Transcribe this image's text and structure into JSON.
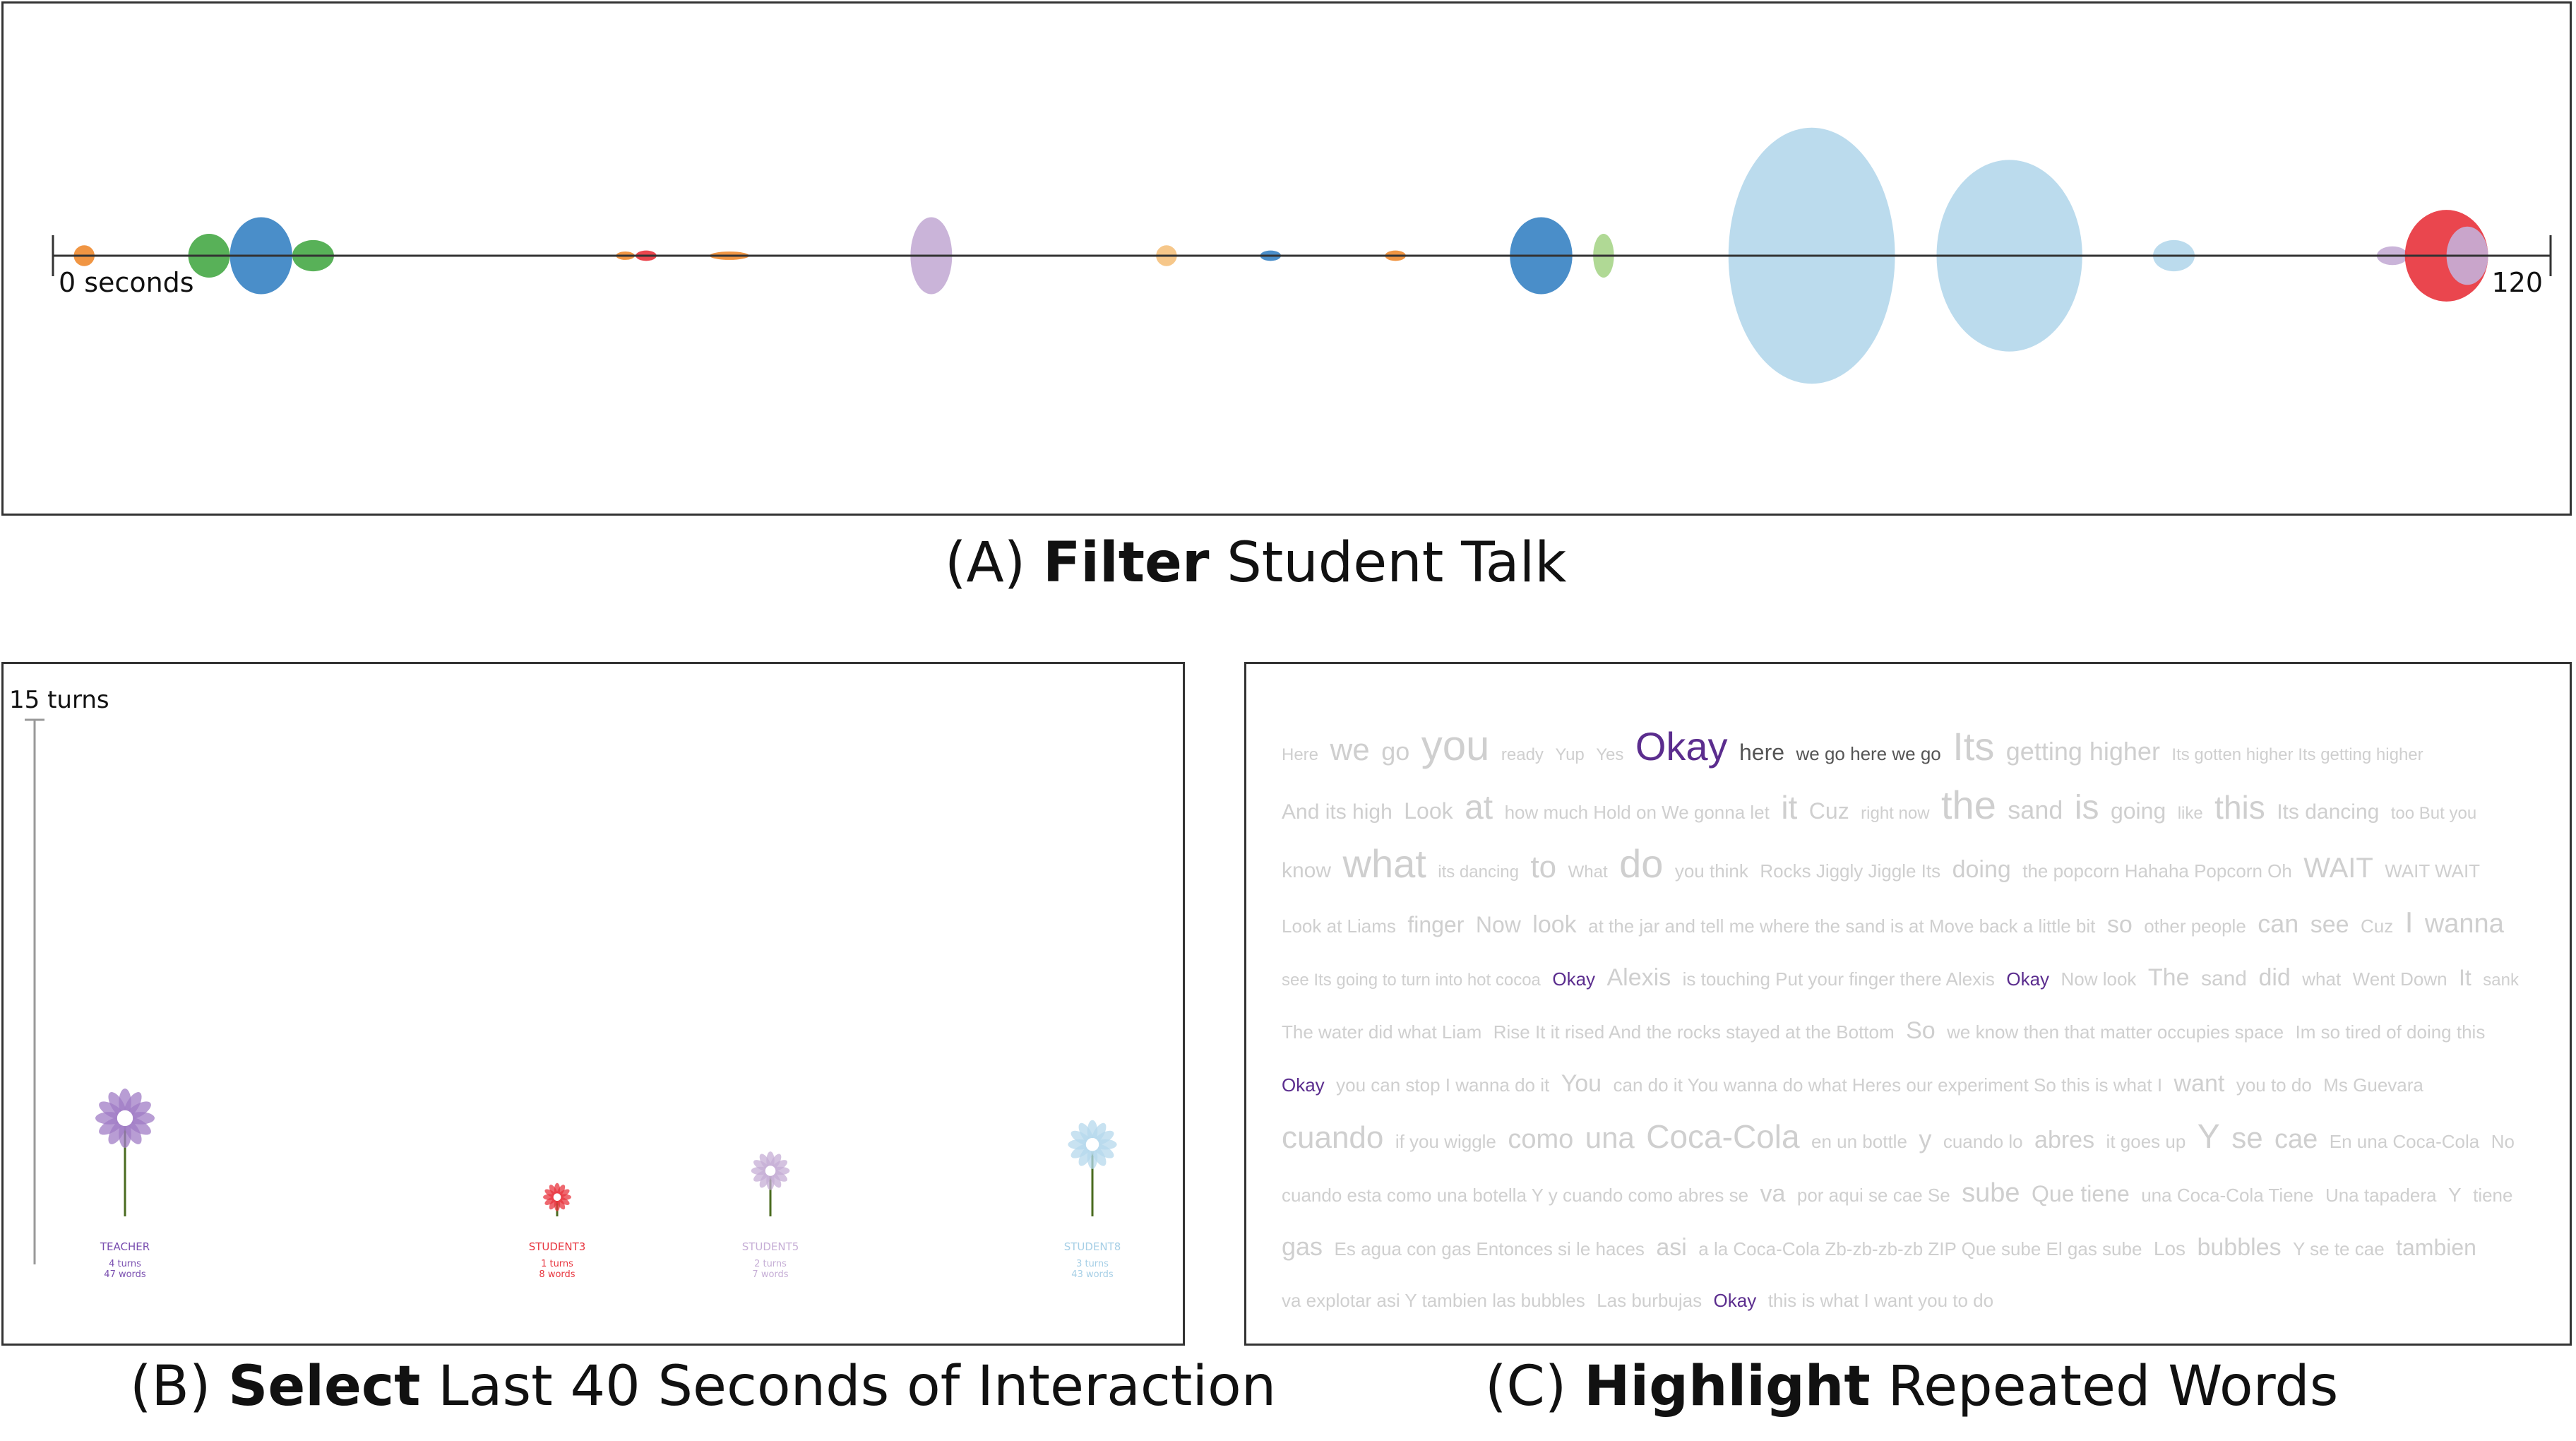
{
  "panels": {
    "a": {
      "caption_bold": "Filter",
      "caption_rest": " Student Talk",
      "caption_prefix": "(A) ",
      "axis_start_label": "0 seconds",
      "axis_end_label": "120",
      "axis_range": [
        0,
        120
      ],
      "colors": {
        "orange": "#ef8c33",
        "green": "#4aaa4a",
        "blue": "#3b84c4",
        "red": "#e8363f",
        "lightpurple": "#c6aed6",
        "lightblue": "#b5d8ec",
        "lightorange": "#f5c280",
        "lightgreen": "#a9d68c"
      },
      "bubbles": [
        {
          "t": 1.5,
          "w": 1.0,
          "h": 1.0,
          "color": "orange"
        },
        {
          "t": 7.5,
          "w": 2.0,
          "h": 2.1,
          "color": "green"
        },
        {
          "t": 10.0,
          "w": 3.0,
          "h": 3.7,
          "color": "blue"
        },
        {
          "t": 12.5,
          "w": 2.0,
          "h": 1.5,
          "color": "green"
        },
        {
          "t": 27.5,
          "w": 0.9,
          "h": 0.4,
          "color": "orange"
        },
        {
          "t": 28.5,
          "w": 1.0,
          "h": 0.5,
          "color": "red"
        },
        {
          "t": 32.5,
          "w": 1.9,
          "h": 0.4,
          "color": "orange"
        },
        {
          "t": 42.2,
          "w": 2.0,
          "h": 3.7,
          "color": "lightpurple"
        },
        {
          "t": 53.5,
          "w": 1.0,
          "h": 1.0,
          "color": "lightorange"
        },
        {
          "t": 58.5,
          "w": 1.0,
          "h": 0.5,
          "color": "blue"
        },
        {
          "t": 64.5,
          "w": 1.0,
          "h": 0.5,
          "color": "orange"
        },
        {
          "t": 71.5,
          "w": 3.0,
          "h": 3.7,
          "color": "blue"
        },
        {
          "t": 74.5,
          "w": 1.0,
          "h": 2.1,
          "color": "lightgreen"
        },
        {
          "t": 84.5,
          "w": 8.0,
          "h": 12.3,
          "color": "lightblue"
        },
        {
          "t": 94.0,
          "w": 7.0,
          "h": 9.2,
          "color": "lightblue"
        },
        {
          "t": 101.9,
          "w": 2.0,
          "h": 1.5,
          "color": "lightblue"
        },
        {
          "t": 112.4,
          "w": 1.5,
          "h": 0.9,
          "color": "lightpurple"
        },
        {
          "t": 115.0,
          "w": 4.0,
          "h": 4.4,
          "color": "red"
        },
        {
          "t": 116.0,
          "w": 2.0,
          "h": 2.8,
          "color": "lightpurple"
        }
      ]
    },
    "b": {
      "caption_prefix": "(B) ",
      "caption_bold": "Select",
      "caption_rest": " Last 40 Seconds of Interaction",
      "axis_label": "15 turns",
      "axis_max": 15,
      "flowers": [
        {
          "name": "TEACHER",
          "turns": 4,
          "turns_label": "4 turns",
          "words_label": "47 words",
          "color": "#a07cc5",
          "label_color": "#7a4fb0"
        },
        {
          "name": "STUDENT3",
          "turns": 1,
          "turns_label": "1 turns",
          "words_label": "8 words",
          "color": "#e8363f",
          "label_color": "#e8363f"
        },
        {
          "name": "STUDENT5",
          "turns": 2,
          "turns_label": "2 turns",
          "words_label": "7 words",
          "color": "#c6aed6",
          "label_color": "#c6aed6"
        },
        {
          "name": "STUDENT8",
          "turns": 3,
          "turns_label": "3 turns",
          "words_label": "43 words",
          "color": "#b5d8ec",
          "label_color": "#a6cfe6"
        }
      ]
    },
    "c": {
      "caption_prefix": "(C) ",
      "caption_bold": "Highlight",
      "caption_rest": " Repeated Words",
      "highlight_color": "#5b2d8e",
      "words": [
        [
          "Here",
          24,
          0
        ],
        [
          "we",
          44,
          0
        ],
        [
          "go",
          36,
          0
        ],
        [
          "you",
          60,
          0
        ],
        [
          "ready",
          24,
          0
        ],
        [
          "Yup",
          24,
          0
        ],
        [
          "Yes",
          24,
          0
        ],
        [
          "Okay",
          56,
          1
        ],
        [
          "here",
          32,
          2
        ],
        [
          "we go here we go",
          26,
          2
        ],
        [
          "Its",
          56,
          0
        ],
        [
          "getting higher",
          36,
          0
        ],
        [
          "Its gotten higher Its getting higher",
          24,
          0
        ],
        [
          "And its high",
          30,
          0
        ],
        [
          "Look",
          32,
          0
        ],
        [
          "at",
          48,
          0
        ],
        [
          "how much Hold on We gonna let",
          26,
          0
        ],
        [
          "it",
          46,
          0
        ],
        [
          "Cuz",
          32,
          0
        ],
        [
          "right now",
          24,
          0
        ],
        [
          "the",
          56,
          0
        ],
        [
          "sand",
          36,
          0
        ],
        [
          "is",
          48,
          0
        ],
        [
          "going",
          32,
          0
        ],
        [
          "like",
          24,
          0
        ],
        [
          "this",
          46,
          0
        ],
        [
          "Its dancing",
          30,
          0
        ],
        [
          "too But you",
          24,
          0
        ],
        [
          "know",
          30,
          0
        ],
        [
          "what",
          56,
          0
        ],
        [
          "its dancing",
          24,
          0
        ],
        [
          "to",
          44,
          0
        ],
        [
          "What",
          24,
          0
        ],
        [
          "do",
          56,
          0
        ],
        [
          "you think",
          26,
          0
        ],
        [
          "Rocks Jiggly Jiggle Its",
          26,
          0
        ],
        [
          "doing",
          34,
          0
        ],
        [
          "the popcorn Hahaha Popcorn Oh",
          26,
          0
        ],
        [
          "WAIT",
          40,
          0
        ],
        [
          "WAIT WAIT",
          26,
          0
        ],
        [
          "Look at Liams",
          26,
          0
        ],
        [
          "finger",
          32,
          0
        ],
        [
          "Now",
          32,
          0
        ],
        [
          "look",
          34,
          0
        ],
        [
          "at the jar and tell me where the sand is at Move back a little bit",
          26,
          0
        ],
        [
          "so",
          34,
          0
        ],
        [
          "other people",
          26,
          0
        ],
        [
          "can",
          36,
          0
        ],
        [
          "see",
          34,
          0
        ],
        [
          "Cuz",
          26,
          0
        ],
        [
          "I",
          42,
          0
        ],
        [
          "wanna",
          38,
          0
        ],
        [
          "see Its going to turn into hot cocoa",
          24,
          0
        ],
        [
          "Okay",
          26,
          1
        ],
        [
          "Alexis",
          34,
          0
        ],
        [
          "is touching Put your finger there Alexis",
          26,
          0
        ],
        [
          "Okay",
          26,
          1
        ],
        [
          "Now look",
          26,
          0
        ],
        [
          "The",
          34,
          0
        ],
        [
          "sand",
          30,
          0
        ],
        [
          "did",
          34,
          0
        ],
        [
          "what",
          26,
          0
        ],
        [
          "Went Down",
          26,
          0
        ],
        [
          "It",
          32,
          0
        ],
        [
          "sank",
          24,
          0
        ],
        [
          "The water did what Liam",
          26,
          0
        ],
        [
          "Rise It it rised And the rocks stayed at the Bottom",
          26,
          0
        ],
        [
          "So",
          34,
          0
        ],
        [
          "we know then that matter occupies space",
          26,
          0
        ],
        [
          "Im so tired of doing this",
          26,
          0
        ],
        [
          "Okay",
          26,
          1
        ],
        [
          "you can stop I wanna do it",
          26,
          0
        ],
        [
          "You",
          34,
          0
        ],
        [
          "can do it You wanna do what Heres our experiment So this is what I",
          26,
          0
        ],
        [
          "want",
          34,
          0
        ],
        [
          "you to do",
          26,
          0
        ],
        [
          "Ms Guevara",
          26,
          0
        ],
        [
          "cuando",
          44,
          0
        ],
        [
          "if you wiggle",
          26,
          0
        ],
        [
          "como",
          38,
          0
        ],
        [
          "una",
          42,
          0
        ],
        [
          "Coca-Cola",
          46,
          0
        ],
        [
          "en un bottle",
          26,
          0
        ],
        [
          "y",
          36,
          0
        ],
        [
          "cuando lo",
          26,
          0
        ],
        [
          "abres",
          34,
          0
        ],
        [
          "it goes up",
          26,
          0
        ],
        [
          "Y",
          48,
          0
        ],
        [
          "se",
          42,
          0
        ],
        [
          "cae",
          38,
          0
        ],
        [
          "En una Coca-Cola",
          26,
          0
        ],
        [
          "No",
          26,
          0
        ],
        [
          "cuando esta como una botella Y y cuando como abres se",
          26,
          0
        ],
        [
          "va",
          34,
          0
        ],
        [
          "por aqui se cae Se",
          26,
          0
        ],
        [
          "sube",
          38,
          0
        ],
        [
          "Que tiene",
          32,
          0
        ],
        [
          "una Coca-Cola Tiene",
          26,
          0
        ],
        [
          "Una tapadera",
          26,
          0
        ],
        [
          "Y",
          28,
          0
        ],
        [
          "tiene",
          26,
          0
        ],
        [
          "gas",
          36,
          0
        ],
        [
          "Es agua con gas Entonces si le haces",
          26,
          0
        ],
        [
          "asi",
          34,
          0
        ],
        [
          "a la Coca-Cola Zb-zb-zb-zb ZIP Que sube El gas sube",
          26,
          0
        ],
        [
          "Los",
          28,
          0
        ],
        [
          "bubbles",
          34,
          0
        ],
        [
          "Y se te cae",
          26,
          0
        ],
        [
          "tambien",
          32,
          0
        ],
        [
          "va explotar asi Y tambien las bubbles",
          26,
          0
        ],
        [
          "Las burbujas",
          26,
          0
        ],
        [
          "Okay",
          26,
          1
        ],
        [
          "this is what I want you to do",
          26,
          0
        ]
      ]
    }
  }
}
